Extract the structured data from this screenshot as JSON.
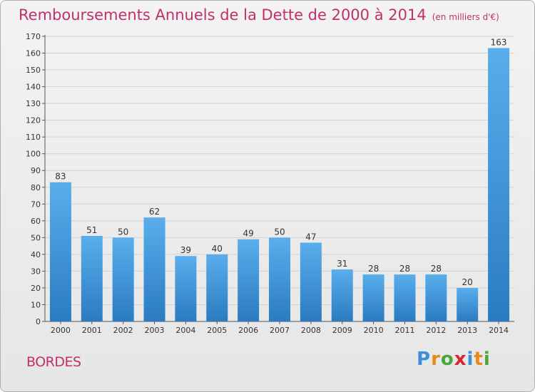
{
  "chart_data": {
    "type": "bar",
    "title": "Remboursements Annuels de la Dette de 2000 à 2014",
    "unit_label": "(en milliers d'€)",
    "categories": [
      "2000",
      "2001",
      "2002",
      "2003",
      "2004",
      "2005",
      "2006",
      "2007",
      "2008",
      "2009",
      "2010",
      "2011",
      "2012",
      "2013",
      "2014"
    ],
    "values": [
      83,
      51,
      50,
      62,
      39,
      40,
      49,
      50,
      47,
      31,
      28,
      28,
      28,
      20,
      163
    ],
    "data_labels": [
      "83",
      "51",
      "50",
      "62",
      "39",
      "40",
      "49",
      "50",
      "47",
      "31",
      "28",
      "28",
      "28",
      "20",
      "163"
    ],
    "y_ticks": [
      0,
      10,
      20,
      30,
      40,
      50,
      60,
      70,
      80,
      90,
      100,
      110,
      120,
      130,
      140,
      150,
      160,
      170
    ],
    "ylim": [
      0,
      170
    ],
    "grid": true,
    "bar_color": "#3b94dc"
  },
  "footer": {
    "commune": "BORDES"
  },
  "logo": {
    "letters": [
      "P",
      "r",
      "o",
      "x",
      "i",
      "t",
      "i"
    ],
    "colors": [
      "#3a8fd8",
      "#e8891c",
      "#4aa838",
      "#d6262e",
      "#3a8fd8",
      "#e8891c",
      "#4aa838"
    ]
  }
}
